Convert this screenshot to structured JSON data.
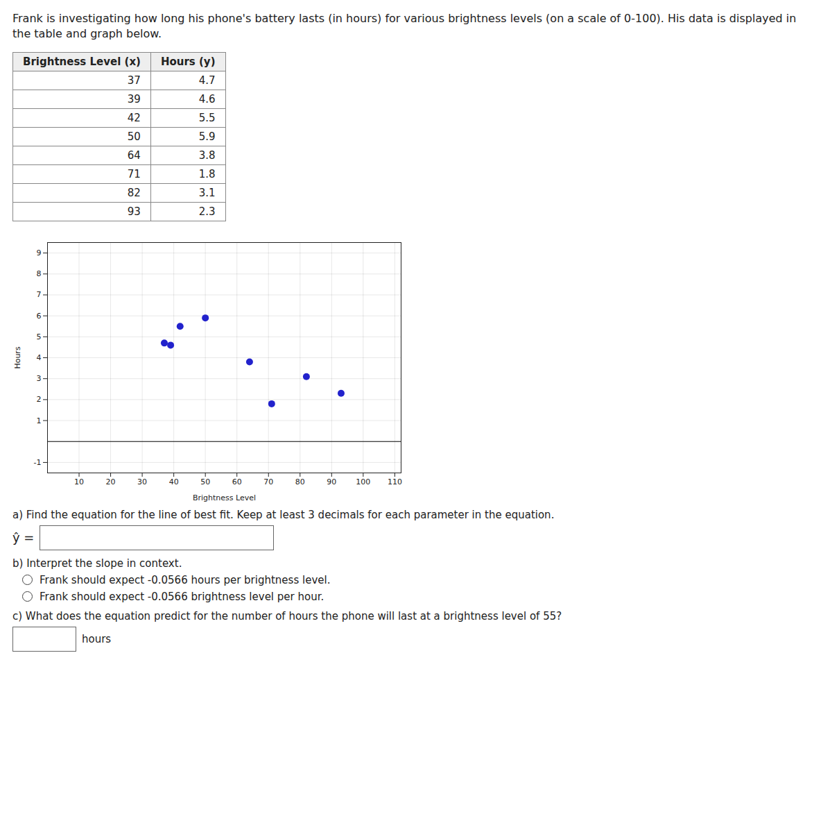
{
  "chart_data": {
    "type": "scatter",
    "title": "Frank is investigating how long his phone's battery lasts (in hours) for various brightness levels (on a scale of 0-100). His data is displayed in the table and graph below.",
    "table": {
      "headers": [
        "Brightness Level (x)",
        "Hours (y)"
      ],
      "rows": [
        [
          37,
          4.7
        ],
        [
          39,
          4.6
        ],
        [
          42,
          5.5
        ],
        [
          50,
          5.9
        ],
        [
          64,
          3.8
        ],
        [
          71,
          1.8
        ],
        [
          82,
          3.1
        ],
        [
          93,
          2.3
        ]
      ]
    },
    "x": [
      37,
      39,
      42,
      50,
      64,
      71,
      82,
      93
    ],
    "values": [
      4.7,
      4.6,
      5.5,
      5.9,
      3.8,
      1.8,
      3.1,
      2.3
    ],
    "color": "#2222cc",
    "xlabel": "Brightness Level",
    "ylabel": "Hours",
    "xlim": [
      0,
      112
    ],
    "ylim": [
      -1.5,
      9.5
    ],
    "xticks": [
      10,
      20,
      30,
      40,
      50,
      60,
      70,
      80,
      90,
      100,
      110
    ],
    "yticks": [
      -1,
      1,
      2,
      3,
      4,
      5,
      6,
      7,
      8,
      9
    ],
    "grid": true,
    "parts": [
      {
        "text": "a) Find the equation for the line of best fit. Keep at least 3 decimals for each parameter in the equation.",
        "answer_prefix": "ŷ ="
      },
      {
        "text": "b) Interpret the slope in context.",
        "options": [
          "Frank should expect -0.0566 hours per brightness level.",
          "Frank should expect -0.0566 brightness level per hour."
        ]
      },
      {
        "text": "c) What does the equation predict for the number of hours the phone will last at a brightness level of 55?",
        "answer_suffix": "hours"
      }
    ]
  }
}
